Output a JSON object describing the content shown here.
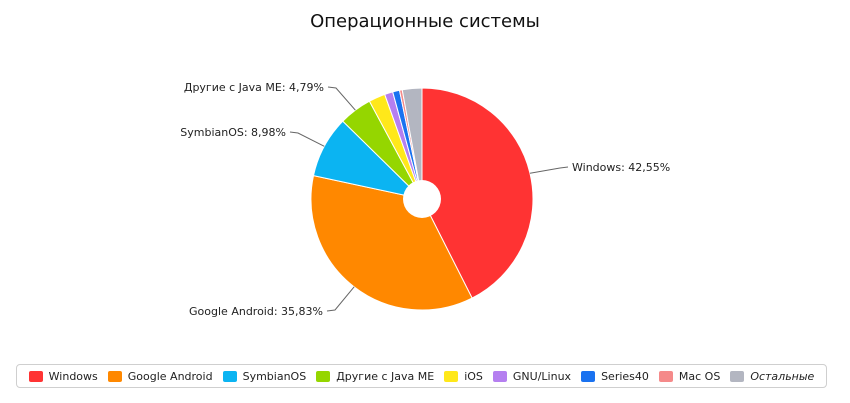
{
  "chart_data": {
    "type": "pie",
    "title": "Операционные системы",
    "series": [
      {
        "name": "Windows",
        "value": 42.55,
        "label": "Windows: 42,55%",
        "color": "#ff3333"
      },
      {
        "name": "Google Android",
        "value": 35.83,
        "label": "Google Android: 35,83%",
        "color": "#ff8800"
      },
      {
        "name": "SymbianOS",
        "value": 8.98,
        "label": "SymbianOS: 8,98%",
        "color": "#0bb4f2"
      },
      {
        "name": "Другие с Java ME",
        "value": 4.79,
        "label": "Другие с Java ME: 4,79%",
        "color": "#95d600"
      },
      {
        "name": "iOS",
        "value": 2.4,
        "label": "",
        "color": "#ffe81a"
      },
      {
        "name": "GNU/Linux",
        "value": 1.2,
        "label": "",
        "color": "#b57ff0"
      },
      {
        "name": "Series40",
        "value": 1.0,
        "label": "",
        "color": "#1a72f0"
      },
      {
        "name": "Mac OS",
        "value": 0.4,
        "label": "",
        "color": "#f58a8a"
      },
      {
        "name": "Остальные",
        "value": 2.85,
        "label": "",
        "color": "#b3b6c1",
        "italic": true
      }
    ],
    "legend": "bottom",
    "donut_hole": true
  }
}
